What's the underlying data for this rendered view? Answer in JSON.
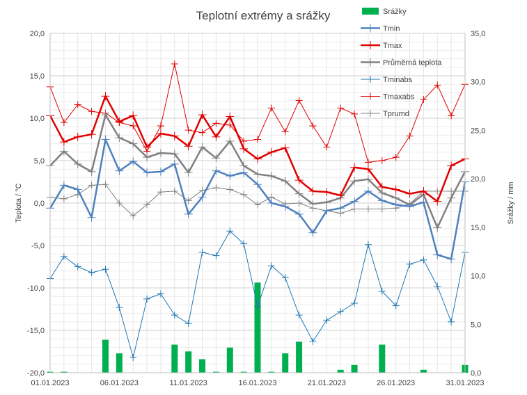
{
  "chart_data": {
    "type": "line",
    "title": "Teplotní extrémy a srážky",
    "ylabel_left": "Teplota / °C",
    "ylabel_right": "Srážky / mm",
    "ylim_left": [
      -20,
      20
    ],
    "ylim_right": [
      0,
      35
    ],
    "yticks_left": [
      "-20,0",
      "-15,0",
      "-10,0",
      "-5,0",
      "0,0",
      "5,0",
      "10,0",
      "15,0",
      "20,0"
    ],
    "yticks_right": [
      "0,0",
      "5,0",
      "10,0",
      "15,0",
      "20,0",
      "25,0",
      "30,0",
      "35,0"
    ],
    "xtick_labels": [
      "01.01.2023",
      "06.01.2023",
      "11.01.2023",
      "16.01.2023",
      "21.01.2023",
      "26.01.2023",
      "31.01.2023"
    ],
    "categories": [
      "01.01.2023",
      "02.01.2023",
      "03.01.2023",
      "04.01.2023",
      "05.01.2023",
      "06.01.2023",
      "07.01.2023",
      "08.01.2023",
      "09.01.2023",
      "10.01.2023",
      "11.01.2023",
      "12.01.2023",
      "13.01.2023",
      "14.01.2023",
      "15.01.2023",
      "16.01.2023",
      "17.01.2023",
      "18.01.2023",
      "19.01.2023",
      "20.01.2023",
      "21.01.2023",
      "22.01.2023",
      "23.01.2023",
      "24.01.2023",
      "25.01.2023",
      "26.01.2023",
      "27.01.2023",
      "28.01.2023",
      "29.01.2023",
      "30.01.2023",
      "31.01.2023"
    ],
    "grid": true,
    "legend": "top-right",
    "series": [
      {
        "name": "Srážky",
        "type": "bar",
        "axis": "right",
        "color": "#00b050",
        "values": [
          0.1,
          0.1,
          0,
          0,
          3.4,
          2.0,
          0,
          0,
          0,
          2.9,
          2.2,
          1.4,
          0.1,
          2.6,
          0.1,
          9.3,
          0.1,
          2.0,
          3.2,
          0,
          0,
          0.3,
          0.8,
          0,
          2.9,
          0,
          0,
          0.3,
          0,
          0,
          0.8
        ]
      },
      {
        "name": "Tmin",
        "type": "line",
        "axis": "left",
        "color": "#4f81bd",
        "width": 2.5,
        "values": [
          -0.6,
          2.1,
          1.6,
          -1.7,
          7.5,
          3.8,
          4.9,
          3.6,
          3.7,
          4.6,
          -1.3,
          0.7,
          3.8,
          3.2,
          3.6,
          2.2,
          0.0,
          -0.4,
          -1.3,
          -3.5,
          -0.9,
          -0.6,
          0.2,
          1.4,
          0.3,
          -0.2,
          -0.4,
          0.1,
          -6.1,
          -6.6,
          2.5
        ]
      },
      {
        "name": "Tmax",
        "type": "line",
        "axis": "left",
        "color": "#e00000",
        "width": 2.5,
        "values": [
          10.3,
          7.2,
          7.8,
          8.1,
          12.6,
          9.6,
          10.3,
          6.6,
          8.2,
          7.9,
          6.7,
          10.4,
          7.8,
          10.2,
          6.4,
          5.2,
          6.0,
          6.5,
          2.7,
          1.4,
          1.3,
          0.9,
          4.2,
          4.0,
          1.9,
          1.6,
          1.1,
          1.4,
          0.2,
          4.4,
          5.2
        ]
      },
      {
        "name": "Průměrná teplota",
        "type": "line",
        "axis": "left",
        "color": "#808080",
        "width": 2.5,
        "values": [
          4.4,
          6.1,
          4.6,
          3.7,
          10.4,
          7.7,
          7.0,
          5.4,
          5.9,
          5.8,
          3.6,
          6.6,
          5.3,
          7.3,
          4.4,
          3.4,
          3.2,
          2.6,
          1.1,
          -0.1,
          0.1,
          0.6,
          2.6,
          2.8,
          1.2,
          0.6,
          -0.2,
          1.0,
          -2.9,
          0.6,
          3.7
        ]
      },
      {
        "name": "Tminabs",
        "type": "line",
        "axis": "left",
        "color": "#1f77b4",
        "width": 1,
        "values": [
          -8.9,
          -6.3,
          -7.5,
          -8.2,
          -7.8,
          -12.3,
          -18.2,
          -11.3,
          -10.7,
          -13.2,
          -14.2,
          -5.8,
          -6.2,
          -3.3,
          -4.8,
          -12.2,
          -7.4,
          -8.8,
          -13.2,
          -16.3,
          -13.8,
          -12.8,
          -11.8,
          -4.9,
          -10.4,
          -12.1,
          -7.2,
          -6.7,
          -9.8,
          -14.0,
          -5.8
        ]
      },
      {
        "name": "Tmaxabs",
        "type": "line",
        "axis": "left",
        "color": "#e00000",
        "width": 1,
        "values": [
          13.7,
          9.5,
          11.6,
          10.8,
          10.6,
          9.5,
          9.1,
          6.1,
          9.1,
          16.4,
          8.6,
          8.3,
          9.4,
          9.2,
          7.3,
          7.5,
          11.2,
          8.4,
          12.1,
          9.1,
          6.6,
          11.2,
          10.5,
          4.8,
          5.0,
          5.4,
          7.9,
          12.2,
          13.9,
          10.3,
          14.0
        ]
      },
      {
        "name": "Tprumd",
        "type": "line",
        "axis": "left",
        "color": "#808080",
        "width": 1,
        "values": [
          0.7,
          0.5,
          1.0,
          2.1,
          2.2,
          0.0,
          -1.5,
          -0.2,
          1.3,
          1.4,
          0.3,
          1.5,
          1.8,
          1.6,
          1.0,
          -0.2,
          0.7,
          -0.1,
          0.0,
          -0.6,
          -0.9,
          -1.2,
          -0.7,
          -0.7,
          -0.7,
          -0.6,
          -0.1,
          1.4,
          1.4,
          1.4,
          1.4
        ]
      }
    ]
  }
}
